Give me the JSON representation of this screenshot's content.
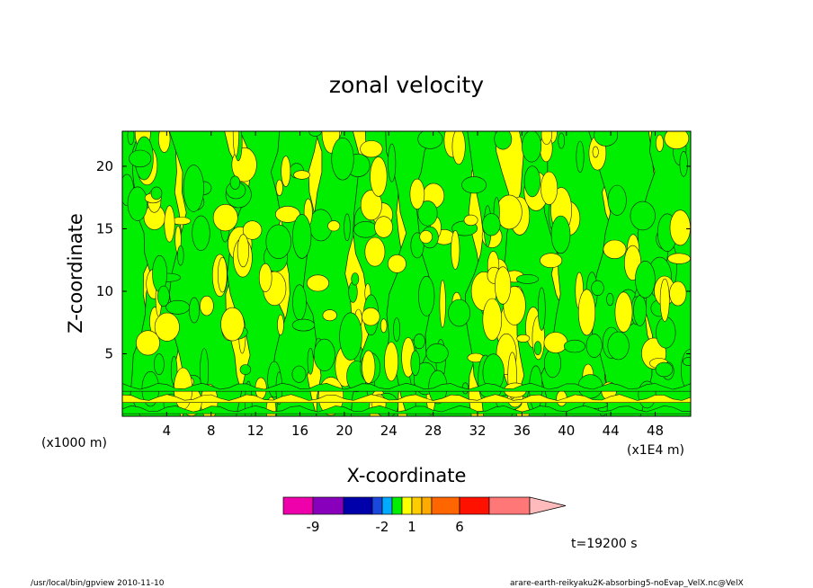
{
  "chart_data": {
    "type": "heatmap",
    "title": "zonal velocity",
    "xlabel": "X-coordinate",
    "ylabel": "Z-coordinate",
    "x_unit_label": "(x1E4 m)",
    "y_unit_label": "(x1000 m)",
    "xlim": [
      0,
      51.2
    ],
    "ylim": [
      0,
      22.8
    ],
    "x_ticks": [
      4,
      8,
      12,
      16,
      20,
      24,
      28,
      32,
      36,
      40,
      44,
      48
    ],
    "y_ticks": [
      5,
      10,
      15,
      20
    ],
    "field_colors": {
      "negative": "#00ee00",
      "positive": "#ffff00",
      "contour": "#1a1a1a"
    },
    "colorbar": {
      "levels": [
        -12,
        -9,
        -6,
        -3,
        -2,
        -1,
        0,
        1,
        2,
        3,
        6,
        9,
        12
      ],
      "colors": [
        "#ee00aa",
        "#8800bb",
        "#0000aa",
        "#1a48dd",
        "#00aaff",
        "#00ee00",
        "#ffff00",
        "#ffcc00",
        "#ffaa00",
        "#ff6600",
        "#ff1100",
        "#ff7777",
        "#ffbbbb"
      ],
      "labels": [
        "-9",
        "-2",
        "1",
        "6"
      ]
    },
    "time_label": "t=19200 s"
  },
  "footer": {
    "left": "/usr/local/bin/gpview  2010-11-10",
    "right": "arare-earth-reikyaku2K-absorbing5-noEvap_VelX.nc@VelX"
  }
}
